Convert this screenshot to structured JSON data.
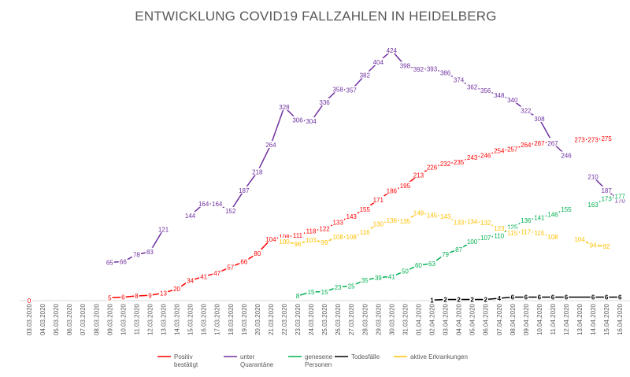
{
  "chart_data": {
    "type": "line",
    "title": "ENTWICKLUNG COVID19 FALLZAHLEN IN HEIDELBERG",
    "xlabel": "",
    "ylabel": "",
    "ylim": [
      0,
      440
    ],
    "grid": false,
    "legend_position": "bottom",
    "categories": [
      "03.03.2020",
      "04.03.2020",
      "05.03.2020",
      "06.03.2020",
      "07.03.2020",
      "08.03.2020",
      "09.03.2020",
      "10.03.2020",
      "11.03.2020",
      "12.03.2020",
      "13.03.2020",
      "14.03.2020",
      "15.03.2020",
      "16.03.2020",
      "17.03.2020",
      "18.03.2020",
      "19.03.2020",
      "20.03.2020",
      "21.03.2020",
      "22.03.2020",
      "23.03.2020",
      "24.03.2020",
      "25.03.2020",
      "26.03.2020",
      "27.03.2020",
      "28.03.2020",
      "29.03.2020",
      "30.03.2020",
      "31.03.2020",
      "01.04.2020",
      "02.04.2020",
      "03.04.2020",
      "04.04.2020",
      "05.04.2020",
      "06.04.2020",
      "07.04.2020",
      "08.04.2020",
      "09.04.2020",
      "10.04.2020",
      "11.04.2020",
      "12.04.2020",
      "13.04.2020",
      "14.04.2020",
      "15.04.2020",
      "16.04.2020"
    ],
    "series": [
      {
        "name": "Positiv bestätigt",
        "legend_lines": [
          "Positiv",
          "bestätigt"
        ],
        "color": "#ff0000",
        "values": [
          0,
          null,
          null,
          null,
          null,
          null,
          5,
          6,
          8,
          9,
          13,
          20,
          34,
          41,
          47,
          57,
          66,
          80,
          104,
          108,
          111,
          118,
          122,
          133,
          143,
          155,
          171,
          186,
          195,
          213,
          226,
          232,
          235,
          243,
          246,
          254,
          257,
          264,
          267,
          269,
          null,
          273,
          273,
          275,
          null
        ],
        "labels": [
          0,
          null,
          null,
          null,
          null,
          null,
          5,
          6,
          8,
          9,
          13,
          20,
          34,
          41,
          47,
          57,
          66,
          80,
          104,
          108,
          111,
          118,
          122,
          133,
          143,
          155,
          171,
          186,
          195,
          213,
          226,
          232,
          235,
          243,
          246,
          254,
          257,
          264,
          267,
          269,
          null,
          273,
          273,
          275,
          null
        ]
      },
      {
        "name": "unter Quarantäne",
        "legend_lines": [
          "unter",
          "Quarantäne"
        ],
        "color": "#7030a0",
        "values": [
          null,
          null,
          null,
          null,
          null,
          null,
          65,
          66,
          78,
          83,
          121,
          null,
          144,
          164,
          164,
          152,
          187,
          218,
          264,
          328,
          306,
          304,
          336,
          358,
          357,
          382,
          404,
          424,
          398,
          392,
          393,
          386,
          374,
          362,
          356,
          348,
          340,
          322,
          308,
          267,
          246,
          null,
          210,
          187,
          170
        ],
        "labels": [
          null,
          null,
          null,
          null,
          null,
          null,
          65,
          66,
          78,
          83,
          121,
          null,
          144,
          164,
          164,
          152,
          187,
          218,
          264,
          328,
          306,
          304,
          336,
          358,
          357,
          382,
          404,
          424,
          398,
          392,
          393,
          386,
          374,
          362,
          356,
          348,
          340,
          322,
          308,
          267,
          246,
          null,
          210,
          187,
          170
        ]
      },
      {
        "name": "genesene Personen",
        "legend_lines": [
          "genesene",
          "Personen"
        ],
        "color": "#00b050",
        "values": [
          null,
          null,
          null,
          null,
          null,
          null,
          null,
          null,
          null,
          null,
          null,
          null,
          null,
          null,
          null,
          null,
          null,
          null,
          null,
          null,
          8,
          15,
          15,
          23,
          25,
          35,
          39,
          41,
          50,
          60,
          63,
          79,
          87,
          100,
          107,
          110,
          125,
          136,
          141,
          146,
          155,
          null,
          163,
          173,
          177
        ],
        "labels": [
          null,
          null,
          null,
          null,
          null,
          null,
          null,
          null,
          null,
          null,
          null,
          null,
          null,
          null,
          null,
          null,
          null,
          null,
          null,
          null,
          8,
          15,
          15,
          23,
          25,
          35,
          39,
          41,
          50,
          60,
          63,
          79,
          87,
          100,
          107,
          110,
          125,
          136,
          141,
          146,
          155,
          null,
          163,
          173,
          177
        ]
      },
      {
        "name": "Todesfälle",
        "legend_lines": [
          "Todesfälle"
        ],
        "color": "#000000",
        "values": [
          null,
          null,
          null,
          null,
          null,
          null,
          null,
          null,
          null,
          null,
          null,
          null,
          null,
          null,
          null,
          null,
          null,
          null,
          null,
          null,
          null,
          null,
          null,
          null,
          null,
          null,
          null,
          null,
          null,
          null,
          1,
          2,
          2,
          2,
          2,
          4,
          6,
          6,
          6,
          6,
          6,
          6,
          6,
          6,
          6
        ],
        "labels": [
          null,
          null,
          null,
          null,
          null,
          null,
          null,
          null,
          null,
          null,
          null,
          null,
          null,
          null,
          null,
          null,
          null,
          null,
          null,
          null,
          null,
          null,
          null,
          null,
          null,
          null,
          null,
          null,
          null,
          null,
          1,
          2,
          2,
          2,
          2,
          4,
          6,
          6,
          6,
          6,
          6,
          null,
          6,
          6,
          6
        ]
      },
      {
        "name": "aktive Erkrankungen",
        "legend_lines": [
          "aktive Erkrankungen"
        ],
        "color": "#ffc000",
        "values": [
          null,
          null,
          null,
          null,
          null,
          null,
          null,
          null,
          null,
          null,
          null,
          null,
          null,
          null,
          null,
          null,
          null,
          null,
          null,
          100,
          96,
          103,
          99,
          108,
          108,
          116,
          130,
          136,
          135,
          149,
          145,
          143,
          133,
          134,
          132,
          123,
          115,
          117,
          115,
          108,
          null,
          104,
          94,
          92,
          null
        ],
        "labels": [
          null,
          null,
          null,
          null,
          null,
          null,
          null,
          null,
          null,
          null,
          null,
          null,
          null,
          null,
          null,
          null,
          null,
          null,
          null,
          100,
          96,
          103,
          99,
          108,
          108,
          116,
          130,
          136,
          135,
          149,
          145,
          143,
          133,
          134,
          132,
          123,
          115,
          117,
          115,
          108,
          null,
          104,
          94,
          92,
          null
        ]
      }
    ]
  }
}
